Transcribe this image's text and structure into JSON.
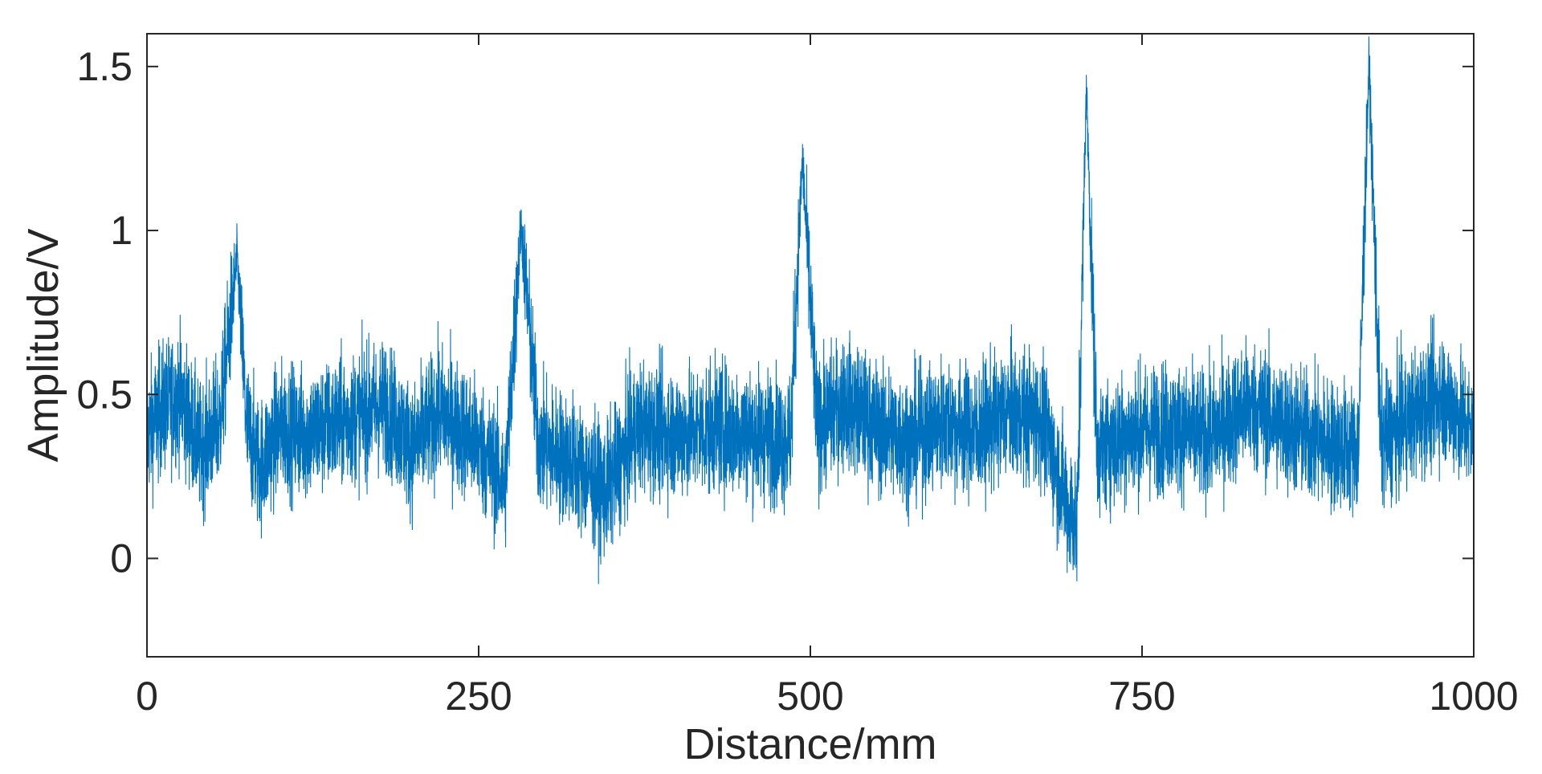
{
  "chart_data": {
    "type": "line",
    "title": "",
    "xlabel": "Distance/mm",
    "ylabel": "Amplitude/V",
    "xlim": [
      0,
      1000
    ],
    "ylim": [
      -0.3,
      1.6
    ],
    "xticks": [
      0,
      250,
      500,
      750,
      1000
    ],
    "xtick_labels": [
      "0",
      "250",
      "500",
      "750",
      "1000"
    ],
    "yticks": [
      0,
      0.5,
      1,
      1.5
    ],
    "ytick_labels": [
      "0",
      "0.5",
      "1",
      "1.5"
    ],
    "grid": false,
    "legend": "none",
    "series": [
      {
        "color": "#0072BD",
        "description_points": [
          {
            "x": 0,
            "y": 0.38
          },
          {
            "x": 10,
            "y": 0.45
          },
          {
            "x": 25,
            "y": 0.5
          },
          {
            "x": 40,
            "y": 0.33
          },
          {
            "x": 55,
            "y": 0.42
          },
          {
            "x": 68,
            "y": 0.92
          },
          {
            "x": 75,
            "y": 0.4
          },
          {
            "x": 85,
            "y": 0.28
          },
          {
            "x": 100,
            "y": 0.4
          },
          {
            "x": 120,
            "y": 0.38
          },
          {
            "x": 150,
            "y": 0.42
          },
          {
            "x": 180,
            "y": 0.47
          },
          {
            "x": 200,
            "y": 0.33
          },
          {
            "x": 220,
            "y": 0.45
          },
          {
            "x": 250,
            "y": 0.35
          },
          {
            "x": 270,
            "y": 0.22
          },
          {
            "x": 282,
            "y": 1.02
          },
          {
            "x": 295,
            "y": 0.35
          },
          {
            "x": 320,
            "y": 0.3
          },
          {
            "x": 345,
            "y": 0.2
          },
          {
            "x": 370,
            "y": 0.4
          },
          {
            "x": 400,
            "y": 0.38
          },
          {
            "x": 430,
            "y": 0.4
          },
          {
            "x": 460,
            "y": 0.38
          },
          {
            "x": 485,
            "y": 0.36
          },
          {
            "x": 494,
            "y": 1.22
          },
          {
            "x": 505,
            "y": 0.4
          },
          {
            "x": 525,
            "y": 0.48
          },
          {
            "x": 550,
            "y": 0.4
          },
          {
            "x": 575,
            "y": 0.36
          },
          {
            "x": 600,
            "y": 0.42
          },
          {
            "x": 625,
            "y": 0.38
          },
          {
            "x": 650,
            "y": 0.45
          },
          {
            "x": 675,
            "y": 0.42
          },
          {
            "x": 695,
            "y": 0.15
          },
          {
            "x": 701,
            "y": 0.1
          },
          {
            "x": 708,
            "y": 1.44
          },
          {
            "x": 716,
            "y": 0.33
          },
          {
            "x": 740,
            "y": 0.38
          },
          {
            "x": 770,
            "y": 0.4
          },
          {
            "x": 800,
            "y": 0.37
          },
          {
            "x": 830,
            "y": 0.47
          },
          {
            "x": 860,
            "y": 0.4
          },
          {
            "x": 890,
            "y": 0.35
          },
          {
            "x": 913,
            "y": 0.33
          },
          {
            "x": 921,
            "y": 1.51
          },
          {
            "x": 930,
            "y": 0.35
          },
          {
            "x": 950,
            "y": 0.42
          },
          {
            "x": 975,
            "y": 0.5
          },
          {
            "x": 1000,
            "y": 0.38
          }
        ]
      }
    ]
  }
}
